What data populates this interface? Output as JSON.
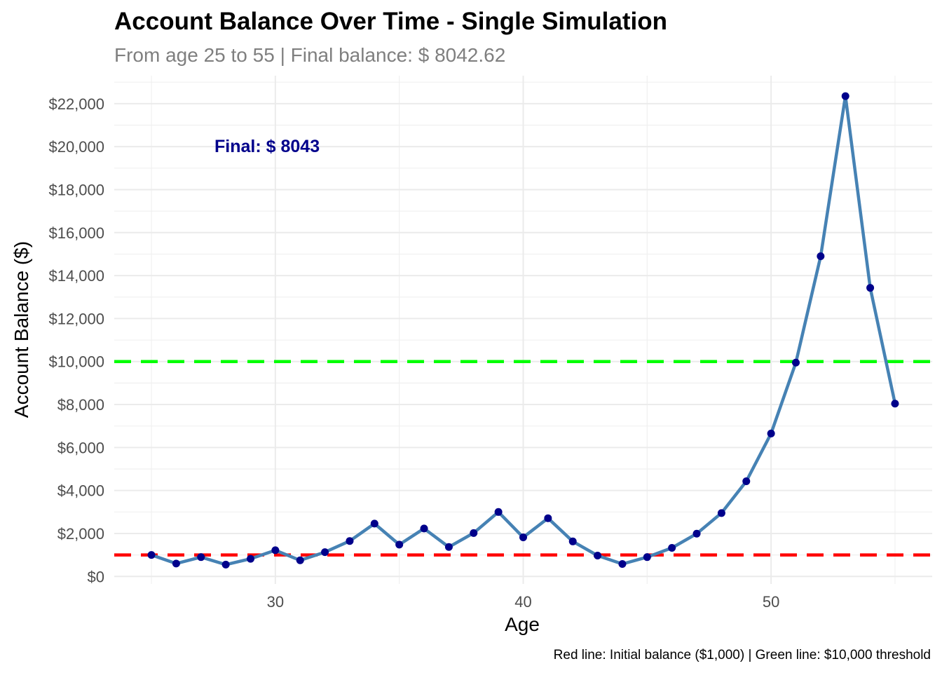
{
  "chart_data": {
    "type": "line",
    "title": "Account Balance Over Time - Single Simulation",
    "subtitle": "From age 25 to 55 | Final balance: $ 8042.62",
    "xlabel": "Age",
    "ylabel": "Account Balance ($)",
    "caption": "Red line: Initial balance ($1,000) | Green line: $10,000 threshold",
    "xlim": [
      23.5,
      56.5
    ],
    "ylim": [
      -350,
      23300
    ],
    "x_ticks": [
      30,
      40,
      50
    ],
    "x_tick_labels": [
      "30",
      "40",
      "50"
    ],
    "y_ticks": [
      0,
      2000,
      4000,
      6000,
      8000,
      10000,
      12000,
      14000,
      16000,
      18000,
      20000,
      22000
    ],
    "y_tick_labels": [
      "$0",
      "$2,000",
      "$4,000",
      "$6,000",
      "$8,000",
      "$10,000",
      "$12,000",
      "$14,000",
      "$16,000",
      "$18,000",
      "$20,000",
      "$22,000"
    ],
    "grid": true,
    "series": [
      {
        "x": [
          25,
          26,
          27,
          28,
          29,
          30,
          31,
          32,
          33,
          34,
          35,
          36,
          37,
          38,
          39,
          40,
          41,
          42,
          43,
          44,
          45,
          46,
          47,
          48,
          49,
          50,
          51,
          52,
          53,
          54,
          55
        ],
        "values": [
          1000,
          600,
          900,
          550,
          820,
          1220,
          750,
          1130,
          1650,
          2460,
          1480,
          2230,
          1370,
          2020,
          3000,
          1820,
          2710,
          1630,
          970,
          580,
          900,
          1330,
          1990,
          2950,
          4430,
          6650,
          9950,
          14900,
          22350,
          13430,
          8043
        ],
        "color": "#4682B4",
        "marker_color": "#00008B"
      }
    ],
    "reference_lines": [
      {
        "y": 1000,
        "color": "#FF0000",
        "style": "dashed"
      },
      {
        "y": 10000,
        "color": "#00FF00",
        "style": "dashed"
      }
    ],
    "annotations": [
      {
        "text": "Final: $ 8043",
        "x": 25,
        "y": 20000,
        "color": "#00008B"
      }
    ]
  }
}
